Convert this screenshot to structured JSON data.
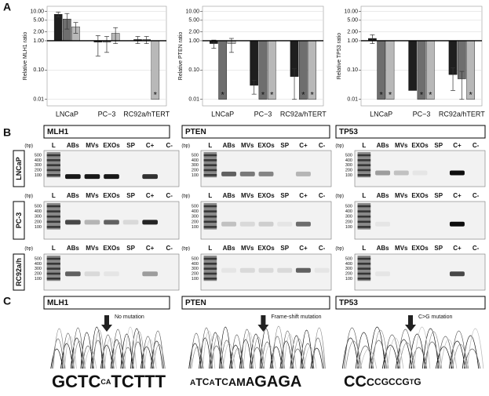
{
  "panel_labels": [
    "A",
    "B",
    "C"
  ],
  "chart_data": [
    {
      "type": "bar",
      "log_scale": true,
      "grid": true,
      "y_label": "Relative MLH1 ratio",
      "categories": [
        "LNCaP",
        "PC−3",
        "RC92a/hTERT"
      ],
      "ylim": [
        0.006,
        15
      ],
      "yticks": [
        {
          "value": 10,
          "label": "10.00"
        },
        {
          "value": 5,
          "label": "5.00"
        },
        {
          "value": 2,
          "label": "2.00"
        },
        {
          "value": 1,
          "label": "1.00"
        },
        {
          "value": 0.1,
          "label": "0.10"
        },
        {
          "value": 0.01,
          "label": "0.01"
        }
      ],
      "series": [
        {
          "color": "#1e1e1e",
          "values": [
            8,
            0.9,
            1.1
          ],
          "errors": [
            1.5,
            0.6,
            0.3
          ],
          "markers": [
            null,
            null,
            null
          ]
        },
        {
          "color": "#6e6e6e",
          "values": [
            5.5,
            0.9,
            1.1
          ],
          "errors": [
            3,
            0.5,
            0.3
          ],
          "markers": [
            null,
            null,
            null
          ]
        },
        {
          "color": "#b8b8b8",
          "values": [
            3,
            1.8,
            0.01
          ],
          "errors": [
            1.2,
            1,
            null
          ],
          "markers": [
            null,
            null,
            "*"
          ]
        }
      ]
    },
    {
      "type": "bar",
      "log_scale": true,
      "grid": true,
      "y_label": "Relative PTEN ratio",
      "categories": [
        "LNCaP",
        "PC−3",
        "RC92a/hTERT"
      ],
      "ylim": [
        0.006,
        15
      ],
      "yticks": [
        {
          "value": 10,
          "label": "10.00"
        },
        {
          "value": 5,
          "label": "5.00"
        },
        {
          "value": 2,
          "label": "2.00"
        },
        {
          "value": 1,
          "label": "1.00"
        },
        {
          "value": 0.1,
          "label": "0.10"
        },
        {
          "value": 0.01,
          "label": "0.01"
        }
      ],
      "series": [
        {
          "color": "#1e1e1e",
          "values": [
            0.8,
            0.03,
            0.06
          ],
          "errors": [
            0.25,
            0.015,
            0.05
          ],
          "markers": [
            null,
            null,
            null
          ]
        },
        {
          "color": "#6e6e6e",
          "values": [
            0.01,
            0.01,
            0.01
          ],
          "errors": [
            null,
            null,
            null
          ],
          "markers": [
            "*",
            "*",
            "*"
          ]
        },
        {
          "color": "#b8b8b8",
          "values": [
            0.8,
            0.01,
            0.01
          ],
          "errors": [
            0.4,
            null,
            null
          ],
          "markers": [
            null,
            "*",
            "*"
          ]
        }
      ]
    },
    {
      "type": "bar",
      "log_scale": true,
      "grid": true,
      "y_label": "Relative TP53 ratio",
      "categories": [
        "LNCaP",
        "PC−3",
        "RC92a/hTERT"
      ],
      "ylim": [
        0.006,
        15
      ],
      "yticks": [
        {
          "value": 10,
          "label": "10.00"
        },
        {
          "value": 5,
          "label": "5.00"
        },
        {
          "value": 2,
          "label": "2.00"
        },
        {
          "value": 1,
          "label": "1.00"
        },
        {
          "value": 0.1,
          "label": "0.10"
        },
        {
          "value": 0.01,
          "label": "0.01"
        }
      ],
      "series": [
        {
          "color": "#1e1e1e",
          "values": [
            1.2,
            0.02,
            0.07
          ],
          "errors": [
            0.4,
            null,
            0.05
          ],
          "markers": [
            null,
            null,
            null
          ]
        },
        {
          "color": "#6e6e6e",
          "values": [
            0.01,
            0.01,
            0.05
          ],
          "errors": [
            null,
            null,
            0.04
          ],
          "markers": [
            "*",
            "*",
            null
          ]
        },
        {
          "color": "#b8b8b8",
          "values": [
            0.01,
            0.01,
            0.01
          ],
          "errors": [
            null,
            null,
            null
          ],
          "markers": [
            "*",
            "*",
            "*"
          ]
        }
      ]
    }
  ],
  "gels": {
    "genes": [
      "MLH1",
      "PTEN",
      "TP53"
    ],
    "cell_lines": [
      "LNCaP",
      "PC-3",
      "RC92a/h"
    ],
    "lanes": [
      "L",
      "ABs",
      "MVs",
      "EXOs",
      "SP",
      "C+",
      "C-"
    ],
    "size_unit": "(bp)",
    "ladder_labels": [
      500,
      400,
      300,
      200,
      100
    ]
  },
  "sequencing": [
    {
      "note": "No mutation",
      "sequence": "GCTCCATCTTT"
    },
    {
      "note": "Frame-shift mutation",
      "sequence": "ATCATCAMAGAGA"
    },
    {
      "note": "C>G mutation",
      "sequence": "CCCCGCCGTG"
    }
  ]
}
